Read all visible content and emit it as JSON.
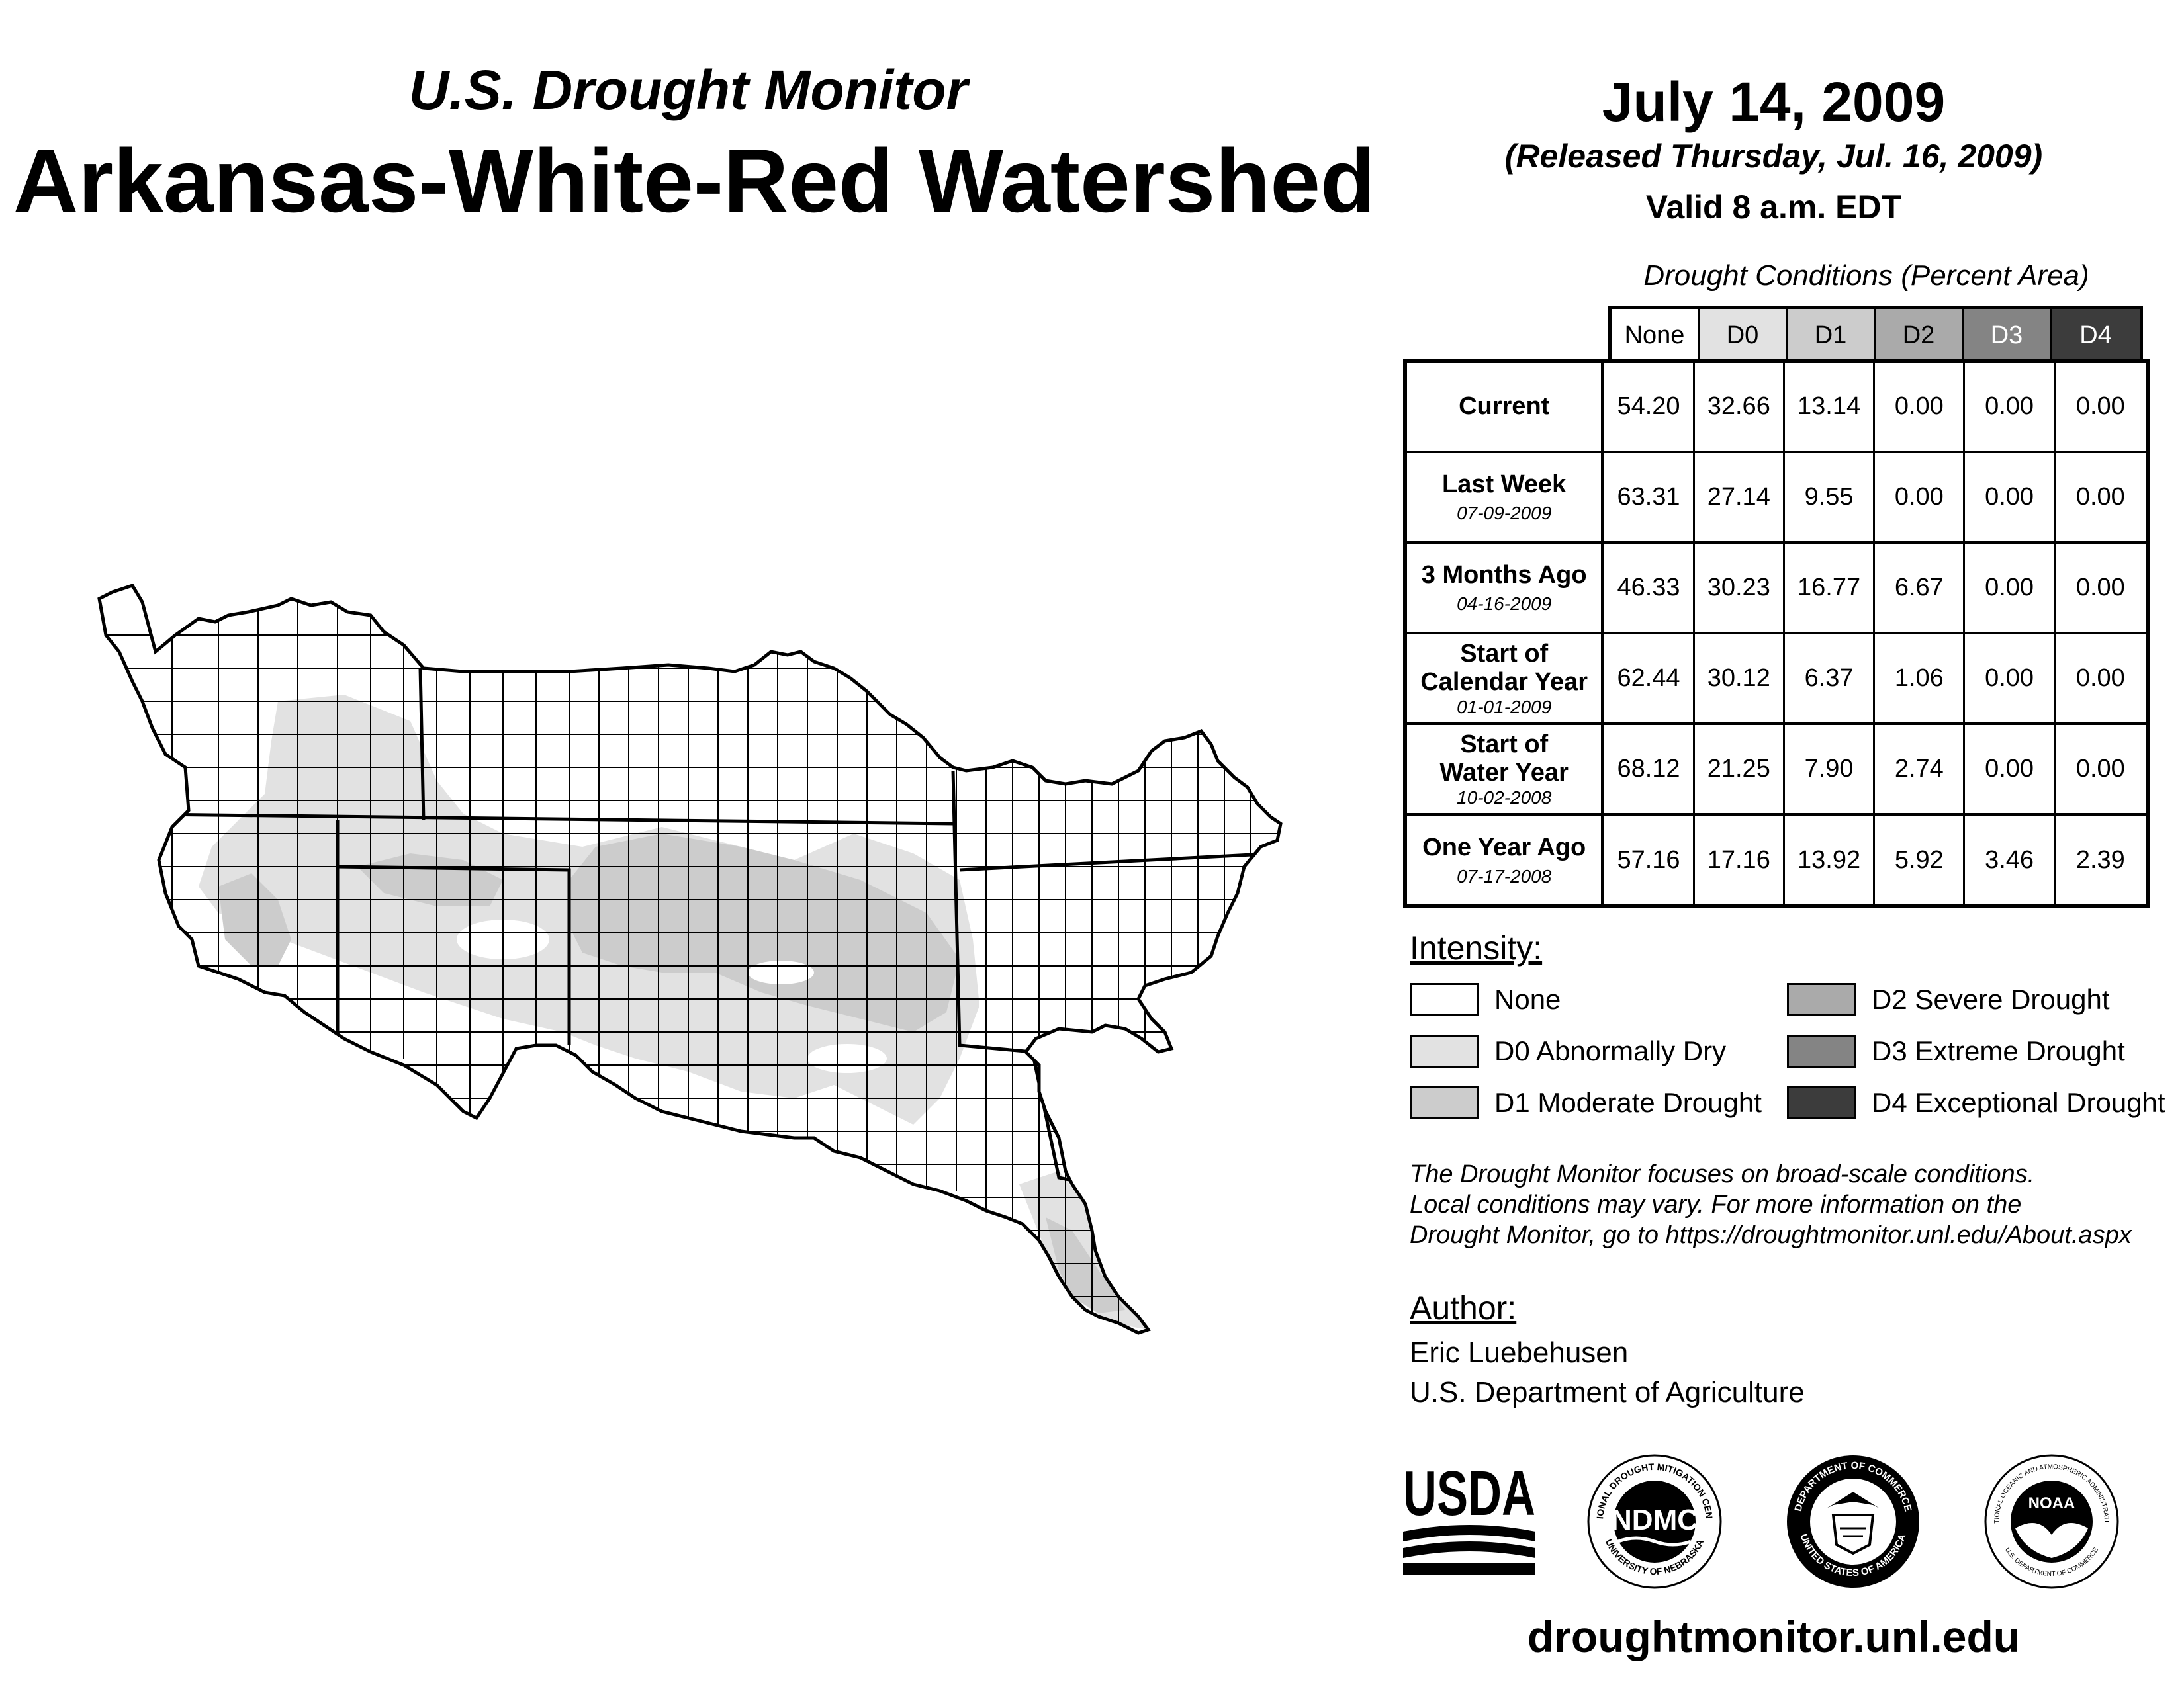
{
  "header": {
    "subtitle": "U.S. Drought Monitor",
    "title": "Arkansas-White-Red Watershed",
    "date": "July 14, 2009",
    "released": "(Released Thursday, Jul. 16, 2009)",
    "valid": "Valid 8 a.m. EDT"
  },
  "table": {
    "title": "Drought Conditions (Percent Area)",
    "columns": [
      "None",
      "D0",
      "D1",
      "D2",
      "D3",
      "D4"
    ],
    "column_colors": [
      "#ffffff",
      "#e2e2e2",
      "#cccccc",
      "#aaaaaa",
      "#848484",
      "#3c3c3c"
    ],
    "column_text_colors": [
      "#000000",
      "#000000",
      "#000000",
      "#000000",
      "#ffffff",
      "#ffffff"
    ],
    "rows": [
      {
        "label": "Current",
        "label2": "",
        "date": "",
        "values": [
          "54.20",
          "32.66",
          "13.14",
          "0.00",
          "0.00",
          "0.00"
        ]
      },
      {
        "label": "Last Week",
        "label2": "",
        "date": "07-09-2009",
        "values": [
          "63.31",
          "27.14",
          "9.55",
          "0.00",
          "0.00",
          "0.00"
        ]
      },
      {
        "label": "3 Months Ago",
        "label2": "",
        "date": "04-16-2009",
        "values": [
          "46.33",
          "30.23",
          "16.77",
          "6.67",
          "0.00",
          "0.00"
        ]
      },
      {
        "label": "Start of",
        "label2": "Calendar Year",
        "date": "01-01-2009",
        "values": [
          "62.44",
          "30.12",
          "6.37",
          "1.06",
          "0.00",
          "0.00"
        ]
      },
      {
        "label": "Start of",
        "label2": "Water Year",
        "date": "10-02-2008",
        "values": [
          "68.12",
          "21.25",
          "7.90",
          "2.74",
          "0.00",
          "0.00"
        ]
      },
      {
        "label": "One Year Ago",
        "label2": "",
        "date": "07-17-2008",
        "values": [
          "57.16",
          "17.16",
          "13.92",
          "5.92",
          "3.46",
          "2.39"
        ]
      }
    ]
  },
  "legend": {
    "title": "Intensity:",
    "items": [
      {
        "label": "None",
        "color": "#ffffff"
      },
      {
        "label": "D0 Abnormally Dry",
        "color": "#e2e2e2"
      },
      {
        "label": "D1 Moderate Drought",
        "color": "#cccccc"
      },
      {
        "label": "D2 Severe Drought",
        "color": "#aaaaaa"
      },
      {
        "label": "D3 Extreme Drought",
        "color": "#848484"
      },
      {
        "label": "D4 Exceptional Drought",
        "color": "#3c3c3c"
      }
    ]
  },
  "note": [
    "The Drought Monitor focuses on broad-scale conditions.",
    "Local conditions may vary. For more information on the",
    "Drought Monitor, go to https://droughtmonitor.unl.edu/About.aspx"
  ],
  "author": {
    "title": "Author:",
    "name": "Eric Luebehusen",
    "org": "U.S. Department of Agriculture"
  },
  "logos": {
    "usda": "USDA",
    "ndmc": "NDMC",
    "ndmc_ring_top": "NATIONAL DROUGHT MITIGATION CENTER",
    "ndmc_ring_bottom": "UNIVERSITY OF NEBRASKA",
    "doc_ring_top": "DEPARTMENT OF COMMERCE",
    "doc_ring_bottom": "UNITED STATES OF AMERICA",
    "noaa": "NOAA",
    "noaa_ring_top": "NATIONAL OCEANIC AND ATMOSPHERIC ADMINISTRATION",
    "noaa_ring_bottom": "U.S. DEPARTMENT OF COMMERCE"
  },
  "url": "droughtmonitor.unl.edu"
}
